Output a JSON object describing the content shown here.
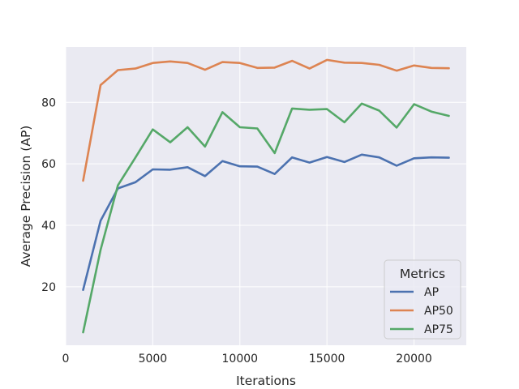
{
  "chart_data": {
    "type": "line",
    "title": "",
    "xlabel": "Iterations",
    "ylabel": "Average Precision (AP)",
    "xlim": [
      0,
      23000
    ],
    "ylim": [
      1,
      98
    ],
    "xticks": [
      0,
      5000,
      10000,
      15000,
      20000
    ],
    "yticks": [
      20,
      40,
      60,
      80
    ],
    "grid": true,
    "legend": {
      "title": "Metrics",
      "placement": "lower-right"
    },
    "x": [
      1000,
      2000,
      3000,
      4000,
      5000,
      6000,
      7000,
      8000,
      9000,
      10000,
      11000,
      12000,
      13000,
      14000,
      15000,
      16000,
      17000,
      18000,
      19000,
      20000,
      21000,
      22000
    ],
    "series": [
      {
        "name": "AP",
        "color": "#4c72b0",
        "values": [
          19.0,
          41.5,
          52.0,
          54.0,
          58.2,
          58.1,
          58.9,
          56.0,
          60.9,
          59.2,
          59.1,
          56.7,
          62.1,
          60.4,
          62.2,
          60.6,
          63.0,
          62.1,
          59.4,
          61.8,
          62.1,
          62.0
        ]
      },
      {
        "name": "AP50",
        "color": "#dd8452",
        "values": [
          54.5,
          85.6,
          90.5,
          91.0,
          92.8,
          93.3,
          92.8,
          90.6,
          93.1,
          92.8,
          91.2,
          91.3,
          93.5,
          91.0,
          93.8,
          92.9,
          92.8,
          92.2,
          90.3,
          92.0,
          91.2,
          91.1
        ]
      },
      {
        "name": "AP75",
        "color": "#55a868",
        "values": [
          5.2,
          32.0,
          53.0,
          62.0,
          71.2,
          67.0,
          71.9,
          65.6,
          76.8,
          71.9,
          71.5,
          63.5,
          78.0,
          77.6,
          77.8,
          73.5,
          79.6,
          77.3,
          71.8,
          79.4,
          77.0,
          75.6
        ]
      }
    ]
  }
}
